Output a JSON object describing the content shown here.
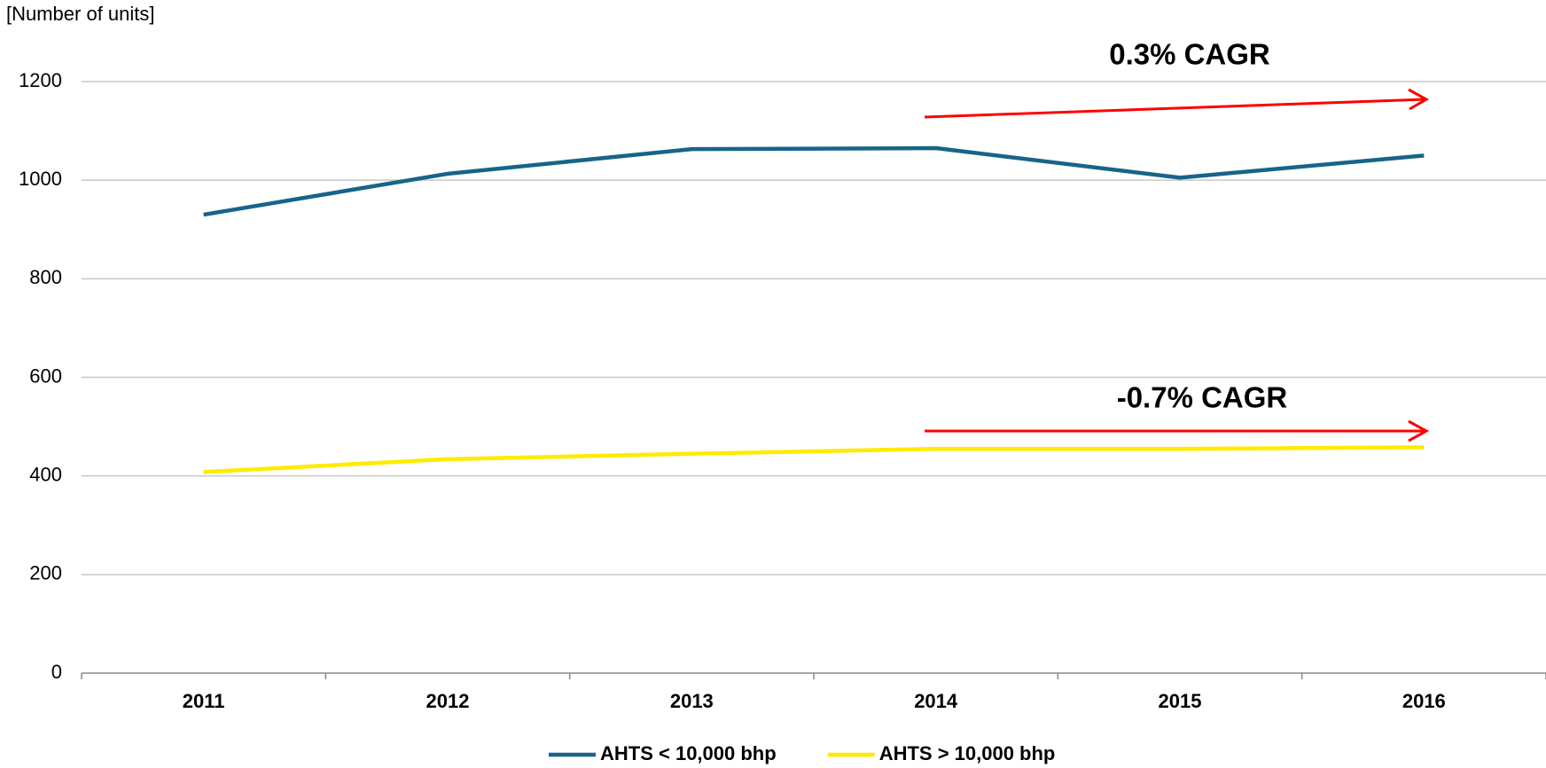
{
  "chart_data": {
    "type": "line",
    "y_axis_label": "[Number of units]",
    "categories": [
      "2011",
      "2012",
      "2013",
      "2014",
      "2015",
      "2016"
    ],
    "series": [
      {
        "name": "AHTS < 10,000 bhp",
        "color": "#17648a",
        "values": [
          930,
          1013,
          1063,
          1065,
          1005,
          1050
        ]
      },
      {
        "name": "AHTS > 10,000 bhp",
        "color": "#ffeb00",
        "values": [
          408,
          434,
          445,
          455,
          455,
          458
        ]
      }
    ],
    "annotations": [
      "0.3% CAGR",
      "-0.7% CAGR"
    ],
    "ylim": [
      0,
      1200
    ],
    "yticks": [
      0,
      200,
      400,
      600,
      800,
      1000,
      1200
    ],
    "grid": true,
    "legend": "bottom"
  }
}
